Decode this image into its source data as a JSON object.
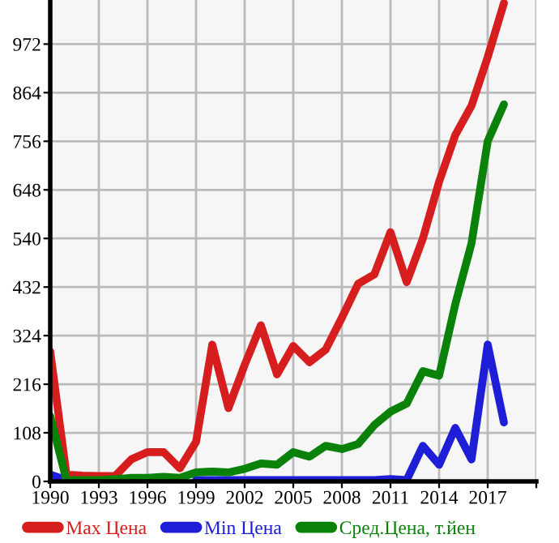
{
  "chart_data": {
    "type": "line",
    "x": [
      1990,
      1991,
      1992,
      1993,
      1994,
      1995,
      1996,
      1997,
      1998,
      1999,
      2000,
      2001,
      2002,
      2003,
      2004,
      2005,
      2006,
      2007,
      2008,
      2009,
      2010,
      2011,
      2012,
      2013,
      2014,
      2015,
      2016,
      2017,
      2018
    ],
    "series": [
      {
        "name": "Max Цена",
        "color": "#d71e1e",
        "values": [
          289,
          15,
          13,
          12,
          12,
          49,
          65,
          65,
          29,
          88,
          304,
          163,
          259,
          347,
          238,
          301,
          265,
          293,
          364,
          439,
          460,
          554,
          443,
          540,
          666,
          770,
          835,
          943,
          1063
        ]
      },
      {
        "name": "Min Цена",
        "color": "#1e1ed7",
        "values": [
          15,
          3,
          null,
          null,
          null,
          null,
          null,
          null,
          null,
          3,
          3,
          3,
          3,
          3,
          3,
          3,
          3,
          3,
          3,
          3,
          3,
          5,
          3,
          79,
          37,
          119,
          49,
          304,
          131
        ]
      },
      {
        "name": "Сред.Цена, т.йен",
        "color": "#0a820a",
        "values": [
          145,
          3,
          3,
          3,
          5,
          8,
          8,
          10,
          8,
          20,
          22,
          20,
          28,
          40,
          37,
          65,
          55,
          79,
          72,
          83,
          125,
          155,
          173,
          245,
          235,
          394,
          529,
          756,
          838
        ]
      }
    ],
    "xlim": [
      1990,
      2020
    ],
    "xticks": [
      1990,
      1993,
      1996,
      1999,
      2002,
      2005,
      2008,
      2011,
      2014,
      2017,
      {
        "value": 2020,
        "label": null
      }
    ],
    "ylim": [
      0,
      1070
    ],
    "yticks": [
      0,
      108,
      216,
      324,
      432,
      540,
      648,
      756,
      864,
      972
    ],
    "grid": true,
    "legend": "bottom",
    "marker": "none",
    "line_style": "solid"
  }
}
